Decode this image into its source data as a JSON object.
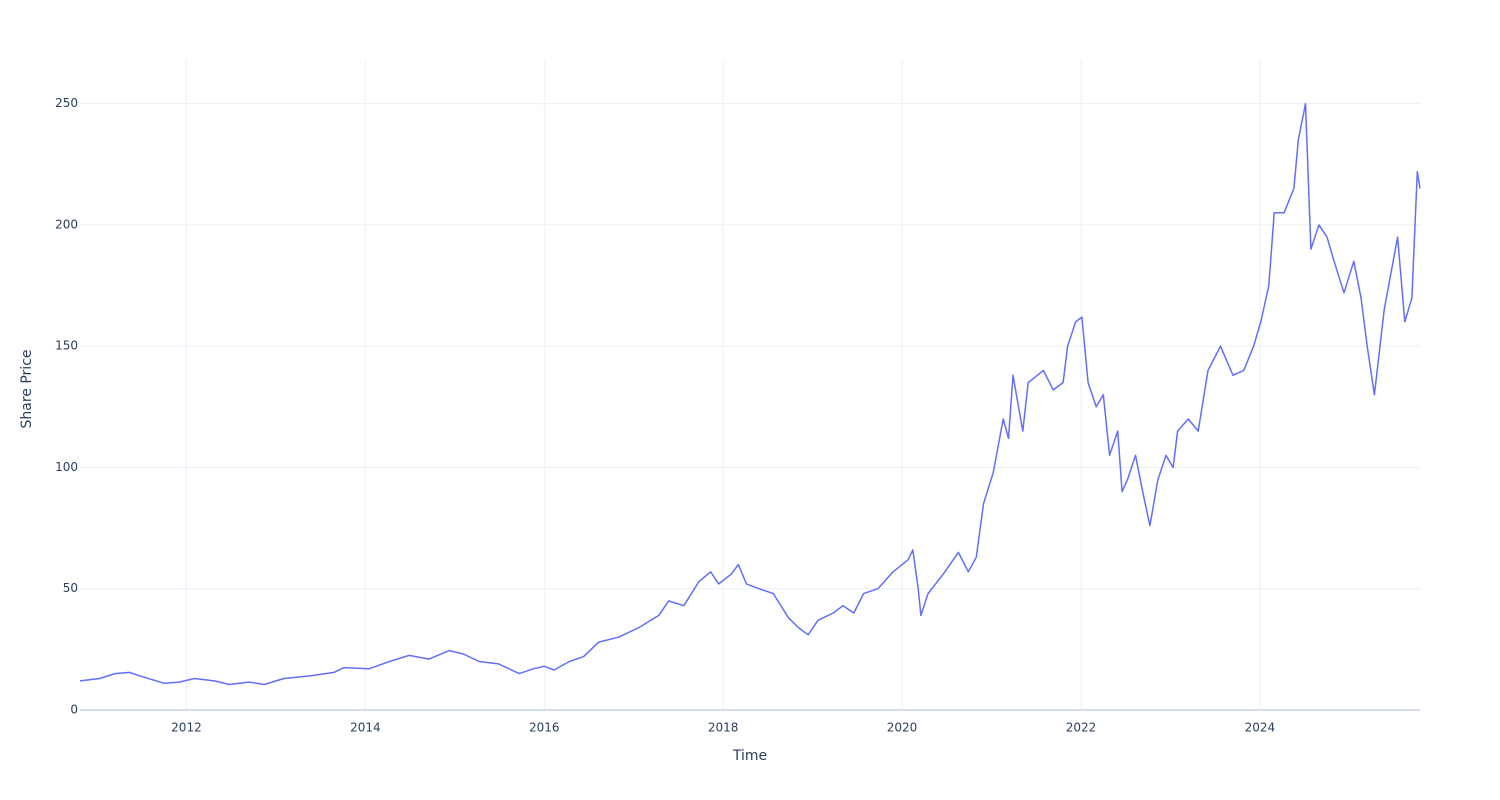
{
  "chart_data": {
    "type": "line",
    "x_label": "Time",
    "y_label": "Share Price",
    "x": [
      2010.81,
      2011.03,
      2011.2,
      2011.36,
      2011.53,
      2011.75,
      2011.92,
      2012.09,
      2012.31,
      2012.48,
      2012.7,
      2012.87,
      2013.09,
      2013.37,
      2013.65,
      2013.76,
      2014.04,
      2014.27,
      2014.49,
      2014.71,
      2014.94,
      2015.1,
      2015.27,
      2015.49,
      2015.72,
      2015.88,
      2016.0,
      2016.11,
      2016.28,
      2016.44,
      2016.61,
      2016.83,
      2017.06,
      2017.28,
      2017.39,
      2017.56,
      2017.73,
      2017.86,
      2017.95,
      2018.09,
      2018.17,
      2018.26,
      2018.4,
      2018.56,
      2018.73,
      2018.84,
      2018.95,
      2019.06,
      2019.23,
      2019.34,
      2019.46,
      2019.57,
      2019.73,
      2019.9,
      2020.07,
      2020.12,
      2020.18,
      2020.21,
      2020.29,
      2020.46,
      2020.63,
      2020.74,
      2020.83,
      2020.91,
      2021.02,
      2021.13,
      2021.19,
      2021.24,
      2021.35,
      2021.41,
      2021.58,
      2021.69,
      2021.8,
      2021.85,
      2021.94,
      2022.01,
      2022.08,
      2022.17,
      2022.25,
      2022.32,
      2022.41,
      2022.46,
      2022.52,
      2022.61,
      2022.69,
      2022.77,
      2022.86,
      2022.95,
      2023.03,
      2023.08,
      2023.2,
      2023.31,
      2023.42,
      2023.56,
      2023.7,
      2023.82,
      2023.93,
      2024.01,
      2024.1,
      2024.16,
      2024.27,
      2024.38,
      2024.43,
      2024.51,
      2024.57,
      2024.66,
      2024.75,
      2024.83,
      2024.94,
      2025.05,
      2025.13,
      2025.2,
      2025.28,
      2025.39,
      2025.54,
      2025.62,
      2025.7,
      2025.76,
      2025.79
    ],
    "series": [
      {
        "color": "#636efa",
        "values": [
          12,
          13,
          15,
          15.5,
          13.5,
          11,
          11.5,
          13,
          12,
          10.5,
          11.5,
          10.5,
          13,
          14,
          15.5,
          17.5,
          17,
          20,
          22.5,
          21,
          24.5,
          23,
          20,
          19,
          15,
          17,
          18,
          16.5,
          20,
          22,
          28,
          30,
          34,
          39,
          45,
          43,
          53,
          57,
          52,
          56,
          60,
          52,
          50,
          48,
          38,
          34,
          31,
          37,
          40,
          43,
          40,
          48,
          50,
          57,
          62,
          66,
          50,
          39,
          48,
          56,
          65,
          57,
          63,
          85,
          98,
          120,
          112,
          138,
          115,
          135,
          140,
          132,
          135,
          150,
          160,
          162,
          135,
          125,
          130,
          105,
          115,
          90,
          95,
          105,
          90,
          76,
          95,
          105,
          100,
          115,
          120,
          115,
          140,
          150,
          138,
          140,
          150,
          160,
          175,
          205,
          205,
          215,
          235,
          250,
          190,
          200,
          195,
          185,
          172,
          185,
          170,
          150,
          130,
          165,
          195,
          160,
          170,
          222,
          215
        ]
      }
    ],
    "xlim": [
      2010.81,
      2025.79
    ],
    "xticks": [
      2012,
      2014,
      2016,
      2018,
      2020,
      2022,
      2024
    ],
    "ylim": [
      0,
      268
    ],
    "yticks": [
      0,
      50,
      100,
      150,
      200,
      250
    ],
    "grid": true
  }
}
